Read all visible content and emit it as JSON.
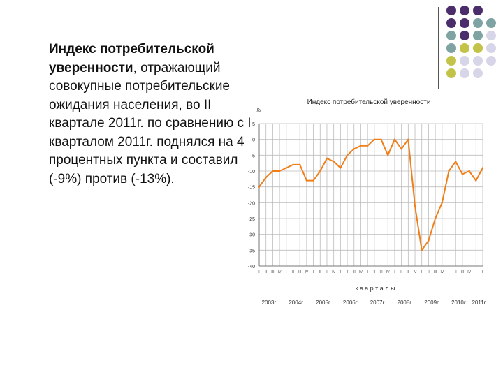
{
  "slide": {
    "text_bold": "Индекс потребительской уверенности",
    "text_rest": ", отражающий совокупные потребительские ожидания населения, во II квартале 2011г. по сравнению с I кварталом 2011г. поднялся на 4 процентных пункта и составил (-9%) против (-13%)."
  },
  "colors": {
    "line": "#f07f1a",
    "grid": "#bdbdbd",
    "dot_purple": "#4b2d6b",
    "dot_teal": "#7fa3a3",
    "dot_olive": "#c3c34a",
    "dot_lavender": "#d6d6e8"
  },
  "chart_data": {
    "type": "line",
    "title": "Индекс потребительской уверенности",
    "ylabel": "%",
    "xlabel": "к в а р т а л ы",
    "ylim": [
      -40,
      5
    ],
    "yticks": [
      5,
      0,
      -5,
      -10,
      -15,
      -20,
      -25,
      -30,
      -35,
      -40
    ],
    "grid": true,
    "year_labels": [
      "2003г.",
      "2004г.",
      "2005г.",
      "2006г.",
      "2007г.",
      "2008г.",
      "2009г.",
      "2010г.",
      "2011г."
    ],
    "quarter_tick_labels": [
      "I",
      "II",
      "III",
      "IV",
      "I",
      "II",
      "III",
      "IV",
      "I",
      "II",
      "III",
      "IV",
      "I",
      "II",
      "III",
      "IV",
      "I",
      "II",
      "III",
      "IV",
      "I",
      "II",
      "III",
      "IV",
      "I",
      "II",
      "III",
      "IV",
      "I",
      "II",
      "III",
      "IV",
      "I",
      "II"
    ],
    "series": [
      {
        "values": [
          -15,
          -12,
          -10,
          -10,
          -9,
          -8,
          -8,
          -13,
          -13,
          -10,
          -6,
          -7,
          -9,
          -5,
          -3,
          -2,
          -2,
          0,
          0,
          -5,
          0,
          -3,
          0,
          -21,
          -35,
          -32,
          -25,
          -20,
          -10,
          -7,
          -11,
          -10,
          -13,
          -9
        ]
      }
    ]
  }
}
